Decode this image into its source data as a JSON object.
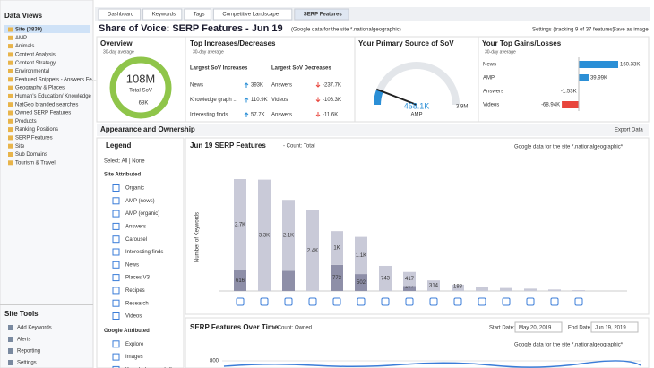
{
  "sidebar": {
    "title": "Data Views",
    "items": [
      "Site (3839)",
      "AMP",
      "Animals",
      "Content Analysis",
      "Content Strategy",
      "Environmental",
      "Featured Snippets - Answers Fe...",
      "Geography & Places",
      "Human's Education/ Knowledge",
      "NatGeo branded searches",
      "Owned SERP Features",
      "Products",
      "Ranking Positions",
      "SERP Features",
      "Site",
      "Sub Domains",
      "Tourism & Travel"
    ],
    "tools_title": "Site Tools",
    "tools": [
      "Add Keywords",
      "Alerts",
      "Reporting",
      "Settings"
    ]
  },
  "tabs": [
    "Dashboard",
    "Keywords",
    "Tags",
    "Competitive Landscape",
    "SERP Features"
  ],
  "header": {
    "title": "Share of Voice: SERP Features - Jun 19",
    "subtitle": "(Google data for the site *.nationalgeographic)",
    "settings": "Settings (tracking 9 of 37 features)",
    "save": "Save as image"
  },
  "overview": {
    "title": "Overview",
    "period": "30-day average",
    "total": "108M",
    "total_label": "Total SoV",
    "change": "68K"
  },
  "increases": {
    "title": "Top Increases/Decreases",
    "period": "30-day average",
    "inc_header": "Largest SoV Increases",
    "dec_header": "Largest SoV Decreases",
    "increases": [
      [
        "News",
        "393K"
      ],
      [
        "Knowledge graph ...",
        "110.9K"
      ],
      [
        "Interesting finds",
        "57.7K"
      ]
    ],
    "decreases": [
      [
        "Answers",
        "-237.7K"
      ],
      [
        "Videos",
        "-106.3K"
      ],
      [
        "Answers",
        "-11.6K"
      ]
    ]
  },
  "primary": {
    "title": "Your Primary Source of SoV",
    "value": 458100,
    "value_label": "458.1K",
    "feature": "AMP",
    "max": 3900000,
    "max_label": "3.9M"
  },
  "gains": {
    "title": "Your Top Gains/Losses",
    "period": "30-day average",
    "categories": [
      "News",
      "AMP",
      "Answers",
      "Videos"
    ],
    "values": [
      160330,
      39990,
      -1530,
      -68940
    ],
    "value_labels": [
      "160.33K",
      "39.99K",
      "-1.53K",
      "-68.94K"
    ],
    "color_pos": "#2b8fd6",
    "color_neg": "#e8453c"
  },
  "section": {
    "title": "Appearance and Ownership",
    "export": "Export Data"
  },
  "legend": {
    "title": "Legend",
    "select": "Select: All | None",
    "groups": [
      {
        "title": "Site Attributed",
        "items": [
          "Organic",
          "AMP (news)",
          "AMP (organic)",
          "Answers",
          "Carousel",
          "Interesting finds",
          "News",
          "Places V3",
          "Recipes",
          "Research",
          "Videos"
        ]
      },
      {
        "title": "Google Attributed",
        "items": [
          "Explore",
          "Images",
          "Knowledge graph (lo..."
        ]
      }
    ]
  },
  "bar_chart": {
    "type": "bar",
    "title": "Jun 19 SERP Features",
    "count": "- Count: Total",
    "source": "Google data for the site *.nationalgeographic*",
    "y_label": "Number of Keywords",
    "series": [
      {
        "color": "#8e8fa8",
        "values": [
          616,
          null,
          600,
          null,
          773,
          502,
          null,
          147,
          null,
          null,
          null,
          null,
          null,
          null,
          null
        ],
        "value_labels": [
          "616",
          null,
          null,
          null,
          "773",
          "502",
          null,
          "147",
          null,
          null,
          null,
          null,
          null,
          null,
          null
        ]
      },
      {
        "color": "#c9cad8",
        "values": [
          2700,
          3300,
          2100,
          2400,
          1000,
          1100,
          743,
          417,
          314,
          188,
          110,
          90,
          70,
          45,
          25
        ],
        "value_labels": [
          "2.7K",
          "3.3K",
          "2.1K",
          "2.4K",
          "1K",
          "1.1K",
          "743",
          "417",
          "314",
          "188",
          null,
          null,
          null,
          null,
          null
        ]
      }
    ]
  },
  "over_time": {
    "title": "SERP Features Over Time",
    "count": "- Count: Owned",
    "start_label": "Start Date:",
    "start": "May 20, 2019",
    "end_label": "End Date:",
    "end": "Jun 19, 2019",
    "source": "Google data for the site *.nationalgeographic*",
    "yticks": [
      800
    ]
  }
}
